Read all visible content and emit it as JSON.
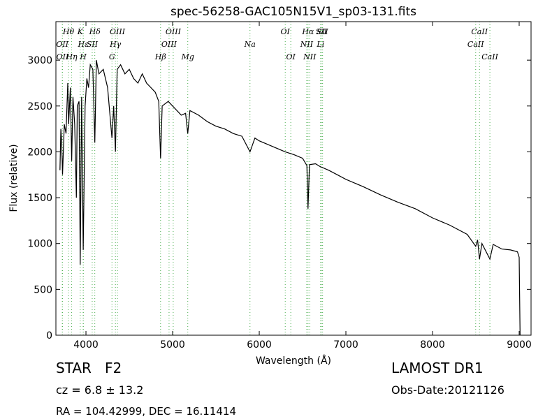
{
  "chart_data": {
    "type": "line",
    "title": "spec-56258-GAC105N15V1_sp03-131.fits",
    "x_label": "Wavelength (Å)",
    "y_label": "Flux (relative)",
    "color": "#000000",
    "line_color": "#4caf50",
    "xlim": [
      3653,
      9137
    ],
    "ylim": [
      0,
      3420
    ],
    "xticks": [
      4000,
      5000,
      6000,
      7000,
      8000,
      9000
    ],
    "yticks": [
      0,
      500,
      1000,
      1500,
      2000,
      2500,
      3000
    ],
    "x": [
      3700,
      3710,
      3720,
      3730,
      3750,
      3770,
      3790,
      3800,
      3820,
      3835,
      3850,
      3870,
      3889,
      3900,
      3920,
      3934,
      3950,
      3968,
      3990,
      4010,
      4030,
      4050,
      4080,
      4102,
      4120,
      4150,
      4200,
      4250,
      4300,
      4320,
      4340,
      4360,
      4400,
      4450,
      4500,
      4550,
      4600,
      4650,
      4700,
      4750,
      4800,
      4840,
      4861,
      4880,
      4950,
      5000,
      5050,
      5100,
      5150,
      5175,
      5200,
      5300,
      5400,
      5500,
      5600,
      5700,
      5800,
      5893,
      5950,
      6000,
      6100,
      6200,
      6300,
      6400,
      6500,
      6550,
      6563,
      6580,
      6650,
      6700,
      6800,
      6900,
      7000,
      7200,
      7400,
      7600,
      7800,
      8000,
      8200,
      8400,
      8498,
      8520,
      8542,
      8570,
      8662,
      8700,
      8800,
      8900,
      8980,
      9000,
      9010
    ],
    "values": [
      1800,
      2250,
      2100,
      1750,
      2300,
      2200,
      2750,
      2300,
      2700,
      1900,
      2600,
      2300,
      1500,
      2500,
      2550,
      770,
      2600,
      930,
      2500,
      2800,
      2700,
      2950,
      2900,
      2100,
      3000,
      2850,
      2900,
      2700,
      2150,
      2500,
      2000,
      2900,
      2950,
      2850,
      2900,
      2800,
      2750,
      2850,
      2750,
      2700,
      2650,
      2550,
      1930,
      2500,
      2550,
      2500,
      2450,
      2400,
      2420,
      2200,
      2450,
      2400,
      2330,
      2280,
      2250,
      2200,
      2170,
      2000,
      2150,
      2120,
      2080,
      2040,
      2000,
      1970,
      1930,
      1850,
      1380,
      1860,
      1870,
      1840,
      1800,
      1750,
      1700,
      1620,
      1530,
      1450,
      1380,
      1280,
      1200,
      1100,
      970,
      1040,
      830,
      1000,
      830,
      990,
      940,
      930,
      910,
      850,
      0
    ],
    "spectral_lines": [
      {
        "label": "Hθ",
        "x": 3798
      },
      {
        "label": "OII",
        "x": 3727
      },
      {
        "label": "OII",
        "x": 3729
      },
      {
        "label": "K",
        "x": 3934
      },
      {
        "label": "Hε",
        "x": 3970
      },
      {
        "label": "Hη",
        "x": 3835
      },
      {
        "label": "Hδ",
        "x": 4102
      },
      {
        "label": "SII",
        "x": 4072
      },
      {
        "label": "H",
        "x": 3968
      },
      {
        "label": "OIII",
        "x": 4363
      },
      {
        "label": "Hγ",
        "x": 4340
      },
      {
        "label": "G",
        "x": 4300
      },
      {
        "label": "OIII",
        "x": 5007
      },
      {
        "label": "OIII",
        "x": 4959
      },
      {
        "label": "Hβ",
        "x": 4861
      },
      {
        "label": "OI",
        "x": 6300
      },
      {
        "label": "Na",
        "x": 5893
      },
      {
        "label": "Mg",
        "x": 5175
      },
      {
        "label": "Hα",
        "x": 6563
      },
      {
        "label": "NII",
        "x": 6548
      },
      {
        "label": "OI",
        "x": 6364
      },
      {
        "label": "SII",
        "x": 6717
      },
      {
        "label": "Li",
        "x": 6708
      },
      {
        "label": "NII",
        "x": 6583
      },
      {
        "label": "CaII",
        "x": 8542
      },
      {
        "label": "CaII",
        "x": 8498
      },
      {
        "label": "CaII",
        "x": 8662
      },
      {
        "label": "SII",
        "x": 6731
      }
    ],
    "object_class": "STAR   F2",
    "survey": "LAMOST DR1",
    "redshift": "cz = 6.8 ± 13.2",
    "obs_date": "Obs-Date:20121126",
    "coordinates": "RA = 104.42999, DEC = 16.11414"
  }
}
